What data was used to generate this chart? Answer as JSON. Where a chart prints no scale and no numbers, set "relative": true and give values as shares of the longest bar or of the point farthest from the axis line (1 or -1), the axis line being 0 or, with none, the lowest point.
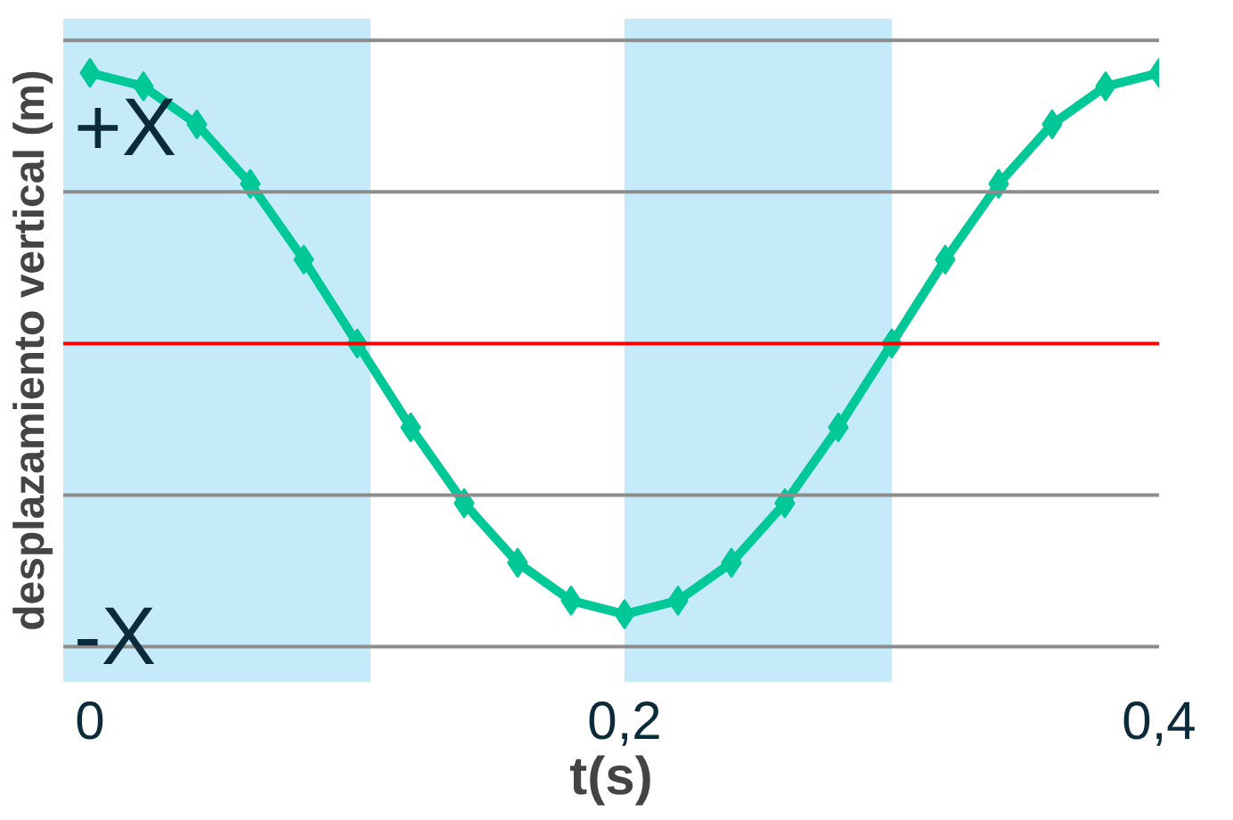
{
  "chart_data": {
    "type": "line",
    "relative": true,
    "xlabel": "t(s)",
    "ylabel": "desplazamiento vertical (m)",
    "x": [
      0,
      0.02,
      0.04,
      0.06,
      0.08,
      0.1,
      0.12,
      0.14,
      0.16,
      0.18,
      0.2,
      0.22,
      0.24,
      0.26,
      0.28,
      0.3,
      0.32,
      0.34,
      0.36,
      0.38,
      0.4
    ],
    "series": [
      {
        "color": "#00c896",
        "values": [
          1,
          0.95,
          0.81,
          0.59,
          0.31,
          0,
          -0.31,
          -0.59,
          -0.81,
          -0.95,
          -1,
          -0.95,
          -0.81,
          -0.59,
          -0.31,
          0,
          0.31,
          0.59,
          0.81,
          0.95,
          1
        ]
      }
    ],
    "xlim": [
      -0.01,
      0.4
    ],
    "xticks": [
      {
        "value": 0,
        "label": "0"
      },
      {
        "value": 0.2,
        "label": "0,2"
      },
      {
        "value": 0.4,
        "label": "0,4"
      }
    ],
    "marker": "diamond",
    "line_style": "solid",
    "ref_lines": [
      {
        "axis": "y",
        "value": 1.12,
        "color": "#8c8c8c"
      },
      {
        "axis": "y",
        "value": 0.56,
        "color": "#8c8c8c"
      },
      {
        "axis": "y",
        "value": -0.56,
        "color": "#8c8c8c"
      },
      {
        "axis": "y",
        "value": -1.12,
        "color": "#8c8c8c"
      },
      {
        "axis": "y",
        "value": 0,
        "color": "#ff0000"
      }
    ],
    "bands": [
      {
        "axis": "x",
        "from": -0.01,
        "to": 0.105,
        "color": "#c5ebfb"
      },
      {
        "axis": "x",
        "from": 0.2,
        "to": 0.3,
        "color": "#c5ebfb"
      }
    ],
    "annotations": [
      "+X",
      "-X"
    ]
  }
}
